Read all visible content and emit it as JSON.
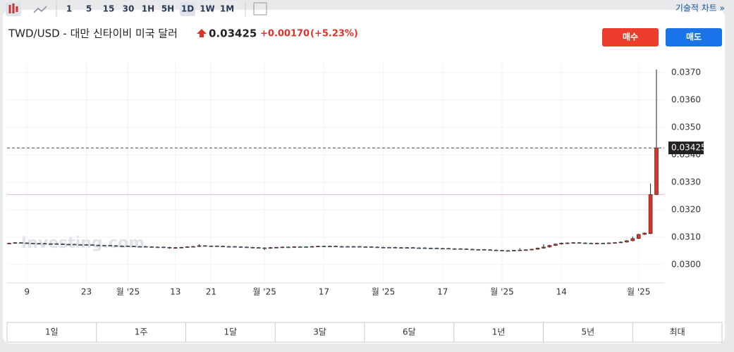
{
  "toolbar": {
    "intervals": [
      "1",
      "5",
      "15",
      "30",
      "1H",
      "5H",
      "1D",
      "1W",
      "1M"
    ],
    "active": "1D",
    "link": "기술적 차트 »"
  },
  "header": {
    "title": "TWD/USD - 대만 신타이비 미국 달러",
    "price": 0.03425,
    "change": "+0.00170",
    "change_pct": "(+5.23%)",
    "buy": "매수",
    "sell": "매도"
  },
  "ranges": [
    "1일",
    "1주",
    "1달",
    "3달",
    "6달",
    "1년",
    "5년",
    "최대"
  ],
  "chart_data": {
    "type": "candlestick",
    "watermark": "Investing.com",
    "grid": true,
    "up_color": "#e0302a",
    "down_color": "#5d9bd6",
    "ylim": [
      0.02933,
      0.03738
    ],
    "yticks": [
      {
        "value": 0.03,
        "label": "0.0300"
      },
      {
        "value": 0.031,
        "label": "0.0310"
      },
      {
        "value": 0.032,
        "label": "0.0320"
      },
      {
        "value": 0.033,
        "label": "0.0330"
      },
      {
        "value": 0.034,
        "label": "0.0340"
      },
      {
        "value": 0.035,
        "label": "0.0350"
      },
      {
        "value": 0.036,
        "label": "0.0360"
      },
      {
        "value": 0.037,
        "label": "0.0370"
      }
    ],
    "last_price": 0.03425,
    "prev_close": 0.03255,
    "categories": [
      null,
      null,
      null,
      "9",
      null,
      null,
      null,
      null,
      null,
      null,
      null,
      null,
      null,
      "23",
      null,
      null,
      null,
      null,
      null,
      null,
      "월 '25",
      null,
      null,
      null,
      null,
      null,
      null,
      null,
      "13",
      null,
      null,
      null,
      null,
      null,
      "21",
      null,
      null,
      null,
      null,
      null,
      null,
      null,
      null,
      "월 '25",
      null,
      null,
      null,
      null,
      null,
      null,
      null,
      null,
      null,
      "17",
      null,
      null,
      null,
      null,
      null,
      null,
      null,
      null,
      null,
      "월 '25",
      null,
      null,
      null,
      null,
      null,
      null,
      null,
      null,
      null,
      "17",
      null,
      null,
      null,
      null,
      null,
      null,
      null,
      null,
      null,
      "월 '25",
      null,
      null,
      null,
      null,
      null,
      null,
      null,
      null,
      null,
      "14",
      null,
      null,
      null,
      null,
      null,
      null,
      null,
      null,
      null,
      null,
      null,
      null,
      "월 '25",
      null,
      null,
      null
    ],
    "open": [
      0.03076,
      0.03078,
      0.0308,
      0.03079,
      0.03078,
      0.03077,
      0.03077,
      0.03076,
      0.03076,
      0.03075,
      0.03074,
      0.03074,
      0.03073,
      0.03073,
      0.03072,
      0.03071,
      0.0307,
      0.0307,
      0.03069,
      0.03068,
      0.03068,
      0.03067,
      0.03066,
      0.03066,
      0.03065,
      0.03064,
      0.03064,
      0.03063,
      0.0306,
      0.03062,
      0.03063,
      0.03065,
      0.03066,
      0.03069,
      0.03068,
      0.03068,
      0.03067,
      0.03066,
      0.03066,
      0.03065,
      0.03064,
      0.03063,
      0.03062,
      0.03061,
      0.0306,
      0.03062,
      0.03063,
      0.03064,
      0.03064,
      0.03065,
      0.03065,
      0.03065,
      0.03066,
      0.03067,
      0.03067,
      0.03067,
      0.03066,
      0.03066,
      0.03066,
      0.03066,
      0.03065,
      0.03065,
      0.03064,
      0.03063,
      0.03063,
      0.03063,
      0.03062,
      0.03062,
      0.03062,
      0.03061,
      0.03061,
      0.0306,
      0.0306,
      0.03059,
      0.03059,
      0.03058,
      0.03058,
      0.03057,
      0.03056,
      0.03055,
      0.03055,
      0.03054,
      0.03053,
      0.03052,
      0.03051,
      0.03051,
      0.03052,
      0.03053,
      0.03054,
      0.03056,
      0.0306,
      0.03064,
      0.0307,
      0.03075,
      0.03078,
      0.03079,
      0.0308,
      0.03079,
      0.03078,
      0.03077,
      0.03078,
      0.03078,
      0.03079,
      0.0308,
      0.03082,
      0.03087,
      0.03095,
      0.0311,
      0.03113,
      0.03255
    ],
    "high": [
      0.0308,
      0.03082,
      0.03082,
      0.03081,
      0.0308,
      0.03079,
      0.03079,
      0.03078,
      0.03078,
      0.03077,
      0.03076,
      0.03076,
      0.03075,
      0.03075,
      0.03074,
      0.03073,
      0.03072,
      0.03072,
      0.03071,
      0.0307,
      0.0307,
      0.03069,
      0.03068,
      0.03068,
      0.03067,
      0.03066,
      0.03066,
      0.03065,
      0.03064,
      0.03065,
      0.03067,
      0.03068,
      0.03074,
      0.03071,
      0.0307,
      0.0307,
      0.03069,
      0.03068,
      0.03068,
      0.03067,
      0.03066,
      0.03065,
      0.03064,
      0.03063,
      0.03064,
      0.03065,
      0.03066,
      0.03066,
      0.03067,
      0.03067,
      0.03067,
      0.03068,
      0.03069,
      0.03069,
      0.03069,
      0.03069,
      0.03068,
      0.03068,
      0.03068,
      0.03068,
      0.03067,
      0.03067,
      0.03066,
      0.03065,
      0.03065,
      0.03065,
      0.03064,
      0.03064,
      0.03064,
      0.03063,
      0.03063,
      0.03062,
      0.03062,
      0.03061,
      0.03061,
      0.0306,
      0.0306,
      0.03059,
      0.03058,
      0.03057,
      0.03057,
      0.03056,
      0.03055,
      0.03054,
      0.03053,
      0.03054,
      0.0306,
      0.03056,
      0.03058,
      0.03062,
      0.03074,
      0.03072,
      0.03077,
      0.0308,
      0.03081,
      0.03082,
      0.03082,
      0.03081,
      0.0308,
      0.0308,
      0.0308,
      0.03081,
      0.03082,
      0.03084,
      0.03089,
      0.03102,
      0.03112,
      0.03117,
      0.03295,
      0.0371
    ],
    "low": [
      0.03074,
      0.03076,
      0.03077,
      0.03076,
      0.03075,
      0.03075,
      0.03074,
      0.03074,
      0.03073,
      0.03072,
      0.03072,
      0.03071,
      0.03071,
      0.0307,
      0.03069,
      0.03068,
      0.03068,
      0.03067,
      0.03066,
      0.03066,
      0.03065,
      0.03064,
      0.03064,
      0.03063,
      0.03062,
      0.03062,
      0.03061,
      0.03058,
      0.03058,
      0.0306,
      0.03061,
      0.03063,
      0.03064,
      0.03066,
      0.03066,
      0.03065,
      0.03064,
      0.03064,
      0.03063,
      0.03062,
      0.03061,
      0.0306,
      0.03059,
      0.03053,
      0.03058,
      0.0306,
      0.03061,
      0.03062,
      0.03062,
      0.03063,
      0.03063,
      0.03063,
      0.03064,
      0.03065,
      0.03065,
      0.03064,
      0.03064,
      0.03064,
      0.03064,
      0.03063,
      0.03063,
      0.03062,
      0.03061,
      0.03061,
      0.03061,
      0.0306,
      0.0306,
      0.0306,
      0.03059,
      0.03059,
      0.03058,
      0.03058,
      0.03057,
      0.03057,
      0.03056,
      0.03056,
      0.03055,
      0.03054,
      0.03053,
      0.03053,
      0.03052,
      0.03051,
      0.0305,
      0.03049,
      0.03049,
      0.03049,
      0.0305,
      0.03051,
      0.03052,
      0.03054,
      0.03058,
      0.03062,
      0.03068,
      0.03073,
      0.03076,
      0.03077,
      0.03077,
      0.03076,
      0.03075,
      0.03075,
      0.03076,
      0.03076,
      0.03077,
      0.03078,
      0.0308,
      0.03085,
      0.03093,
      0.03108,
      0.03111,
      0.03253
    ],
    "close": [
      0.03078,
      0.0308,
      0.03079,
      0.03078,
      0.03077,
      0.03077,
      0.03076,
      0.03076,
      0.03075,
      0.03074,
      0.03074,
      0.03073,
      0.03073,
      0.03072,
      0.03071,
      0.0307,
      0.0307,
      0.03069,
      0.03068,
      0.03068,
      0.03067,
      0.03066,
      0.03066,
      0.03065,
      0.03064,
      0.03064,
      0.03063,
      0.0306,
      0.03062,
      0.03063,
      0.03065,
      0.03066,
      0.03069,
      0.03068,
      0.03068,
      0.03067,
      0.03066,
      0.03066,
      0.03065,
      0.03064,
      0.03063,
      0.03062,
      0.03061,
      0.0306,
      0.03062,
      0.03063,
      0.03064,
      0.03064,
      0.03065,
      0.03065,
      0.03065,
      0.03066,
      0.03067,
      0.03067,
      0.03067,
      0.03066,
      0.03066,
      0.03066,
      0.03066,
      0.03065,
      0.03065,
      0.03064,
      0.03063,
      0.03063,
      0.03063,
      0.03062,
      0.03062,
      0.03062,
      0.03061,
      0.03061,
      0.0306,
      0.0306,
      0.03059,
      0.03059,
      0.03058,
      0.03058,
      0.03057,
      0.03056,
      0.03055,
      0.03055,
      0.03054,
      0.03053,
      0.03052,
      0.03051,
      0.03051,
      0.03052,
      0.03053,
      0.03054,
      0.03056,
      0.0306,
      0.03064,
      0.0307,
      0.03075,
      0.03078,
      0.03079,
      0.0308,
      0.03079,
      0.03078,
      0.03077,
      0.03078,
      0.03078,
      0.03079,
      0.0308,
      0.03082,
      0.03087,
      0.03095,
      0.0311,
      0.03115,
      0.03255,
      0.03425
    ]
  }
}
